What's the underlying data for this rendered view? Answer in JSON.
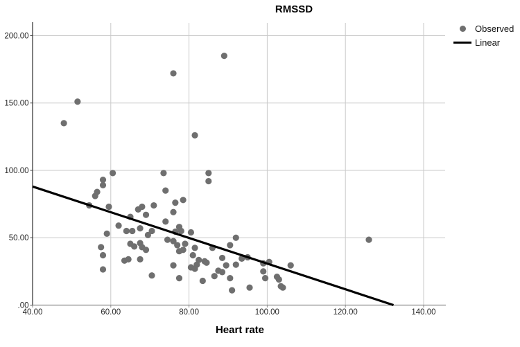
{
  "chart": {
    "title": "RMSSD",
    "xlabel": "Heart rate",
    "legend": {
      "observed": "Observed",
      "linear": "Linear"
    }
  },
  "chart_data": {
    "type": "scatter",
    "title": "RMSSD",
    "xlabel": "Heart rate",
    "ylabel": "",
    "grid": true,
    "legend_position": "top-right",
    "xlim": [
      40,
      145.5
    ],
    "ylim": [
      0,
      210
    ],
    "x_ticks": [
      40,
      60,
      80,
      100,
      120,
      140
    ],
    "x_tick_labels": [
      "40.00",
      "60.00",
      "80.00",
      "100.00",
      "120.00",
      "140.00"
    ],
    "y_ticks": [
      0,
      50,
      100,
      150,
      200
    ],
    "y_tick_labels": [
      ".00",
      "50.00",
      "100.00",
      "150.00",
      "200.00"
    ],
    "series": [
      {
        "name": "Observed",
        "kind": "scatter",
        "marker_color": "#6f6f6f",
        "points": [
          [
            48,
            135
          ],
          [
            51.5,
            151
          ],
          [
            54.5,
            74
          ],
          [
            56,
            81
          ],
          [
            56.5,
            84
          ],
          [
            57.5,
            43
          ],
          [
            58,
            93
          ],
          [
            58,
            89
          ],
          [
            58,
            37
          ],
          [
            58,
            26.5
          ],
          [
            59,
            53
          ],
          [
            59.5,
            73
          ],
          [
            60.5,
            98
          ],
          [
            62,
            59
          ],
          [
            63.5,
            33
          ],
          [
            64,
            55
          ],
          [
            64.5,
            34
          ],
          [
            65,
            65.5
          ],
          [
            65,
            45.5
          ],
          [
            65.5,
            55
          ],
          [
            66,
            43.5
          ],
          [
            67,
            71
          ],
          [
            67.5,
            57
          ],
          [
            67.5,
            46
          ],
          [
            67.5,
            34
          ],
          [
            68,
            73
          ],
          [
            68,
            43
          ],
          [
            69,
            67
          ],
          [
            69,
            41
          ],
          [
            69.5,
            52
          ],
          [
            70.5,
            55
          ],
          [
            70.5,
            22
          ],
          [
            71,
            74
          ],
          [
            73.5,
            98
          ],
          [
            74,
            85
          ],
          [
            74,
            62
          ],
          [
            74.5,
            48.5
          ],
          [
            76,
            172
          ],
          [
            76,
            69
          ],
          [
            76,
            47.5
          ],
          [
            76,
            29.5
          ],
          [
            76.5,
            76
          ],
          [
            76.5,
            54.5
          ],
          [
            77,
            44.5
          ],
          [
            77.5,
            58
          ],
          [
            77.5,
            40
          ],
          [
            77.5,
            20
          ],
          [
            78,
            55
          ],
          [
            78.5,
            78
          ],
          [
            78.5,
            41
          ],
          [
            79,
            45.5
          ],
          [
            80.5,
            54
          ],
          [
            80.5,
            28
          ],
          [
            81,
            37
          ],
          [
            81.5,
            126
          ],
          [
            81.5,
            42.5
          ],
          [
            81.5,
            27
          ],
          [
            82,
            30
          ],
          [
            82.5,
            33.5
          ],
          [
            83.5,
            18
          ],
          [
            84,
            32.5
          ],
          [
            84.5,
            31.5
          ],
          [
            85,
            98
          ],
          [
            85,
            92
          ],
          [
            86,
            42.5
          ],
          [
            86.5,
            21.5
          ],
          [
            87.5,
            25.5
          ],
          [
            88.5,
            35
          ],
          [
            88.5,
            24.5
          ],
          [
            89,
            185
          ],
          [
            89.5,
            29.5
          ],
          [
            90.5,
            44.5
          ],
          [
            90.5,
            20
          ],
          [
            91,
            11
          ],
          [
            92,
            50
          ],
          [
            92,
            30
          ],
          [
            93.5,
            34.5
          ],
          [
            95,
            35.5
          ],
          [
            95.5,
            13
          ],
          [
            99,
            31
          ],
          [
            99,
            25
          ],
          [
            99.5,
            20
          ],
          [
            100.5,
            32
          ],
          [
            102.5,
            21
          ],
          [
            103,
            19
          ],
          [
            103.5,
            14
          ],
          [
            104,
            13
          ],
          [
            106,
            29.5
          ],
          [
            126,
            48.5
          ]
        ]
      },
      {
        "name": "Linear",
        "kind": "line",
        "color": "#000000",
        "points": [
          [
            40,
            88
          ],
          [
            132.3,
            0
          ]
        ]
      }
    ]
  },
  "style": {
    "background": "#ffffff",
    "grid_color": "#c9c9c9",
    "y_axis_color": "#3c3c3c",
    "x_axis_color": "#8a8a8a",
    "tick_label_color": "#262626",
    "marker_color": "#6f6f6f",
    "fit_line_color": "#000000"
  }
}
